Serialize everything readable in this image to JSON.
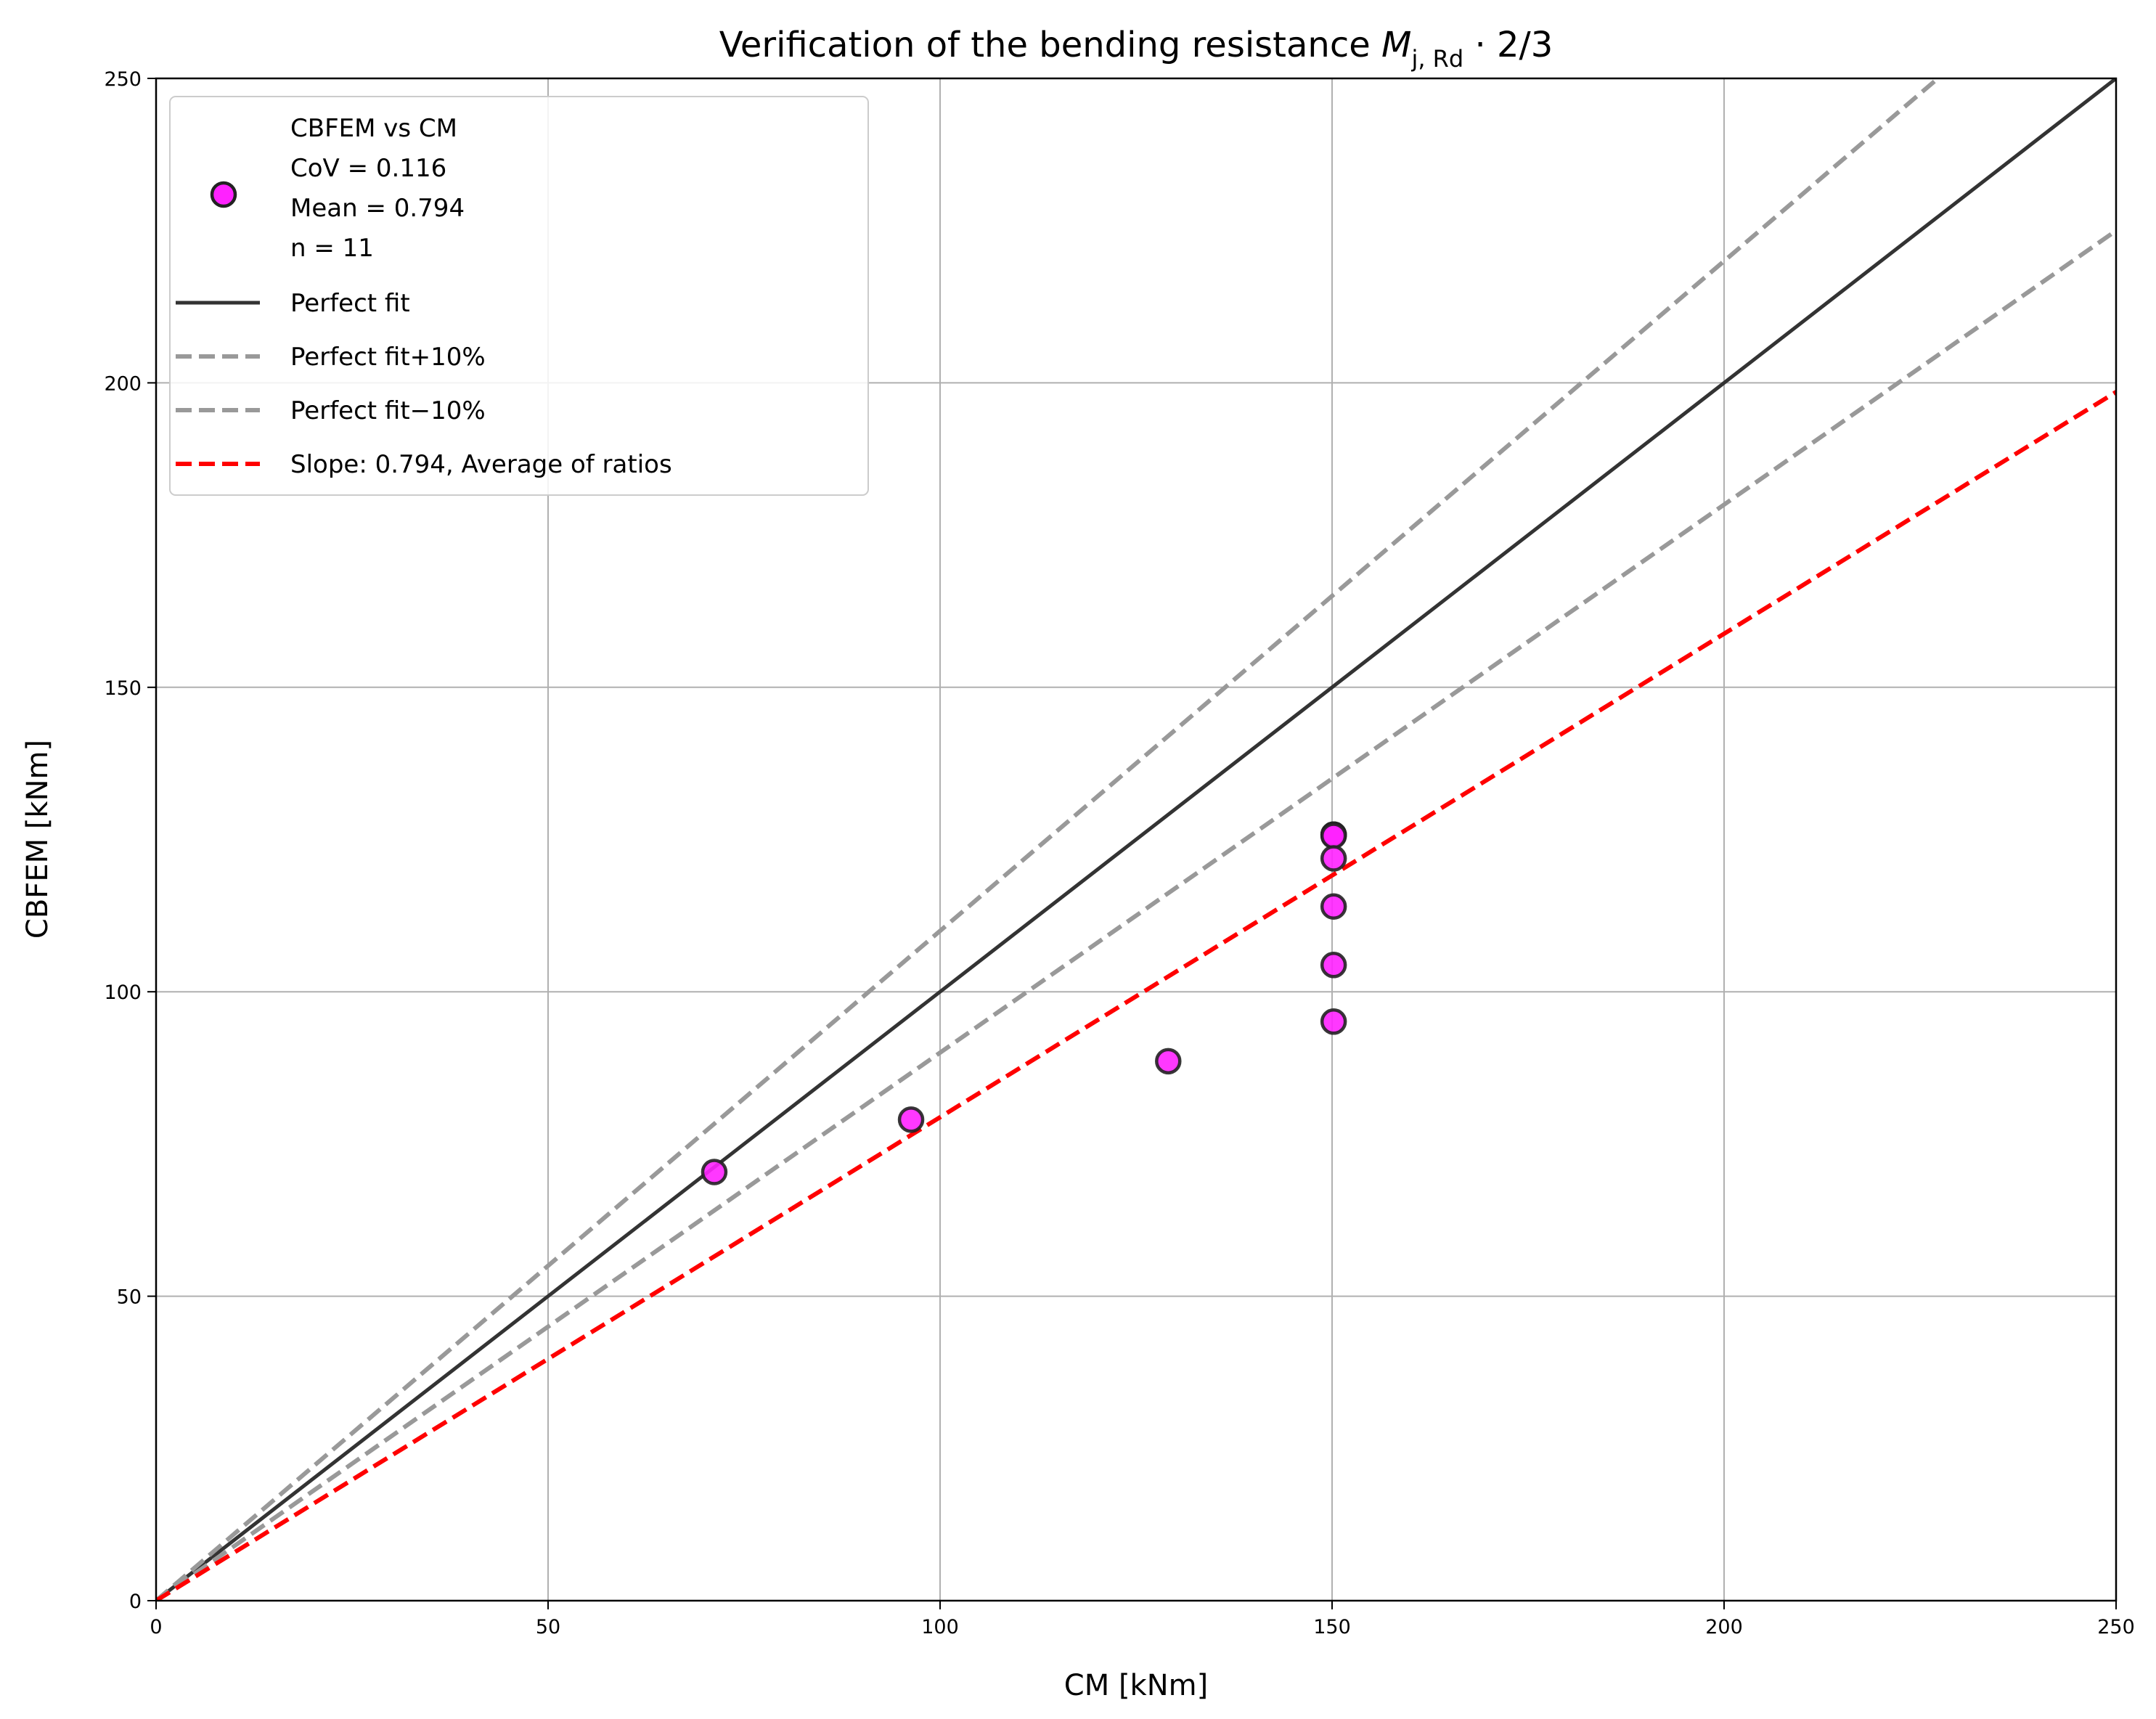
{
  "chart_data": {
    "type": "scatter",
    "title": "Verification of the bending resistance ",
    "title_math": {
      "symbol": "M",
      "subscript": "j, Rd",
      "suffix": " · 2/3"
    },
    "xlabel": "CM [kNm]",
    "ylabel": "CBFEM [kNm]",
    "xlim": [
      0,
      250
    ],
    "ylim": [
      0,
      250
    ],
    "xticks": [
      0,
      50,
      100,
      150,
      200,
      250
    ],
    "yticks": [
      0,
      50,
      100,
      150,
      200,
      250
    ],
    "grid": true,
    "legend_placement": "top-left",
    "points": {
      "x": [
        71.2,
        96.3,
        129.1,
        150.2,
        150.2,
        150.2,
        150.2,
        150.2,
        150.2,
        150.2,
        150.2
      ],
      "y": [
        70.4,
        79.0,
        88.6,
        125.8,
        125.8,
        125.8,
        125.6,
        121.9,
        114.0,
        104.4,
        95.1
      ],
      "color": "#ff22ff",
      "edge_color": "#222222"
    },
    "legend": {
      "scatter_lines": [
        "CBFEM vs CM",
        "CoV = 0.116",
        "Mean = 0.794",
        "n = 11"
      ],
      "lines": [
        {
          "label": "Perfect fit",
          "slope": 1.0,
          "color": "#333333",
          "dashed": false
        },
        {
          "label": "Perfect fit+10%",
          "slope": 1.1,
          "color": "#999999",
          "dashed": true
        },
        {
          "label": "Perfect fit−10%",
          "slope": 0.9,
          "color": "#999999",
          "dashed": true
        },
        {
          "label": "Slope: 0.794, Average of ratios",
          "slope": 0.794,
          "color": "#ff0000",
          "dashed": true
        }
      ]
    }
  }
}
